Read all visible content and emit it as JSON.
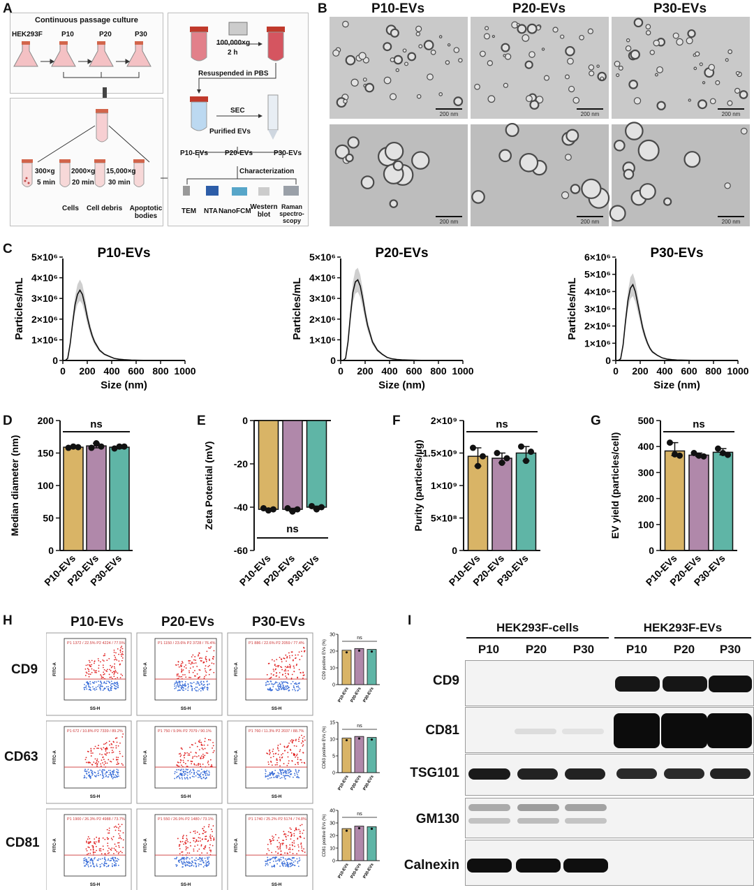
{
  "panel_labels": {
    "a": "A",
    "b": "B",
    "c": "C",
    "d": "D",
    "e": "E",
    "f": "F",
    "g": "G",
    "h": "H",
    "i": "I"
  },
  "panelA": {
    "title": "Continuous passage culture",
    "flask_labels": [
      "HEK293F",
      "P10",
      "P20",
      "P30"
    ],
    "centrifugation_steps": [
      {
        "speed": "300×g",
        "time": "5 min",
        "product": "Cells"
      },
      {
        "speed": "2000×g",
        "time": "20 min",
        "product": "Cell debris"
      },
      {
        "speed": "15,000×g",
        "time": "30 min",
        "product": "Apoptotic bodies"
      }
    ],
    "ultracentrifuge": {
      "speed": "100,000×g",
      "time": "2 h"
    },
    "resuspend": "Resuspended in PBS",
    "sec": "SEC",
    "purified": "Purified EVs",
    "ev_labels": [
      "P10-EVs",
      "P20-EVs",
      "P30-EVs"
    ],
    "characterization": "Characterization",
    "methods": [
      "TEM",
      "NTA",
      "NanoFCM",
      "Western blot",
      "Raman spectro- scopy"
    ]
  },
  "panelB": {
    "columns": [
      "P10-EVs",
      "P20-EVs",
      "P30-EVs"
    ],
    "scale_bar": "200 nm"
  },
  "panelC": {
    "xlabel": "Size (nm)",
    "ylabel": "Particles/mL"
  },
  "panelH": {
    "columns": [
      "P10-EVs",
      "P20-EVs",
      "P30-EVs"
    ],
    "rows": [
      "CD9",
      "CD63",
      "CD81"
    ],
    "x_axis": "SS-H",
    "y_axis": "FITC-A",
    "gates": [
      [
        "P1 1372 / 22.5%  P2 4224 / 77.5%",
        "P1 1150 / 23.6%  P2 3728 / 76.4%",
        "P1 886 / 22.6%  P2 2059 / 77.4%"
      ],
      [
        "P1 672 / 10.8%  P2 7339 / 89.2%",
        "P1 750 / 9.9%  P2 7079 / 90.1%",
        "P1 760 / 11.3%  P2 2037 / 88.7%"
      ],
      [
        "P1 1900 / 26.3%  P2 4988 / 73.7%",
        "P1 550 / 26.9%  P2 1480 / 73.1%",
        "P1 1740 / 25.2%  P2 5174 / 74.8%"
      ]
    ],
    "bar_ylabels": [
      "CD9 positive EVs (%)",
      "CD63 positive EVs (%)",
      "CD81 positive EVs (%)"
    ],
    "ns": "ns"
  },
  "panelI": {
    "group_cells": "HEK293F-cells",
    "group_evs": "HEK293F-EVs",
    "lanes": [
      "P10",
      "P20",
      "P30",
      "P10",
      "P20",
      "P30"
    ],
    "proteins": [
      "CD9",
      "CD81",
      "TSG101",
      "GM130",
      "Calnexin"
    ]
  },
  "chart_data": [
    {
      "type": "line",
      "panel": "C",
      "title": "P10-EVs",
      "xlabel": "Size (nm)",
      "ylabel": "Particles/mL",
      "xlim": [
        0,
        1000
      ],
      "ylim": [
        0,
        5000000
      ],
      "xticks": [
        "0",
        "200",
        "400",
        "600",
        "800",
        "1000"
      ],
      "yticks": [
        "0",
        "1×10⁶",
        "2×10⁶",
        "3×10⁶",
        "4×10⁶",
        "5×10⁶"
      ],
      "series": [
        {
          "x": [
            0,
            20,
            40,
            60,
            80,
            100,
            120,
            140,
            160,
            180,
            200,
            220,
            240,
            260,
            280,
            300,
            340,
            380,
            420,
            460,
            500,
            560,
            620,
            700,
            800,
            900,
            1000
          ],
          "y": [
            0,
            0,
            100000,
            800000,
            1800000,
            2700000,
            3200000,
            3400000,
            3200000,
            2700000,
            2100000,
            1600000,
            1200000,
            900000,
            700000,
            500000,
            300000,
            200000,
            100000,
            60000,
            40000,
            20000,
            10000,
            5000,
            0,
            0,
            0
          ]
        }
      ]
    },
    {
      "type": "line",
      "panel": "C",
      "title": "P20-EVs",
      "xlabel": "Size (nm)",
      "ylabel": "Particles/mL",
      "xlim": [
        0,
        1000
      ],
      "ylim": [
        0,
        5000000
      ],
      "xticks": [
        "0",
        "200",
        "400",
        "600",
        "800",
        "1000"
      ],
      "yticks": [
        "0",
        "1×10⁶",
        "2×10⁶",
        "3×10⁶",
        "4×10⁶",
        "5×10⁶"
      ],
      "series": [
        {
          "x": [
            0,
            20,
            40,
            60,
            80,
            100,
            120,
            140,
            160,
            180,
            200,
            220,
            240,
            260,
            280,
            300,
            340,
            380,
            420,
            460,
            500,
            560,
            620,
            700,
            800,
            900,
            1000
          ],
          "y": [
            0,
            0,
            100000,
            900000,
            2200000,
            3300000,
            3800000,
            3900000,
            3600000,
            3000000,
            2300000,
            1700000,
            1300000,
            900000,
            700000,
            500000,
            300000,
            150000,
            80000,
            50000,
            30000,
            20000,
            10000,
            5000,
            0,
            0,
            0
          ]
        }
      ]
    },
    {
      "type": "line",
      "panel": "C",
      "title": "P30-EVs",
      "xlabel": "Size (nm)",
      "ylabel": "Particles/mL",
      "xlim": [
        0,
        1000
      ],
      "ylim": [
        0,
        6000000
      ],
      "xticks": [
        "0",
        "200",
        "400",
        "600",
        "800",
        "1000"
      ],
      "yticks": [
        "0",
        "1×10⁶",
        "2×10⁶",
        "3×10⁶",
        "4×10⁶",
        "5×10⁶",
        "6×10⁶"
      ],
      "series": [
        {
          "x": [
            0,
            20,
            40,
            60,
            80,
            100,
            120,
            140,
            160,
            180,
            200,
            220,
            240,
            260,
            280,
            300,
            340,
            380,
            420,
            460,
            500,
            560,
            620,
            700,
            800,
            900,
            1000
          ],
          "y": [
            0,
            0,
            100000,
            900000,
            2300000,
            3500000,
            4200000,
            4400000,
            4000000,
            3300000,
            2600000,
            1900000,
            1400000,
            1000000,
            700000,
            500000,
            300000,
            150000,
            80000,
            50000,
            30000,
            20000,
            10000,
            5000,
            0,
            0,
            0
          ]
        }
      ]
    },
    {
      "type": "bar",
      "panel": "D",
      "ylabel": "Median diameter (nm)",
      "categories": [
        "P10-EVs",
        "P20-EVs",
        "P30-EVs"
      ],
      "values": [
        159,
        161,
        159
      ],
      "points": [
        [
          158,
          160,
          159
        ],
        [
          158,
          165,
          160
        ],
        [
          157,
          160,
          160
        ]
      ],
      "ylim": [
        0,
        200
      ],
      "yticks": [
        "0",
        "50",
        "100",
        "150",
        "200"
      ],
      "annotation": "ns",
      "colors": [
        "#d9b466",
        "#b088aa",
        "#5fb5a6"
      ]
    },
    {
      "type": "bar",
      "panel": "E",
      "ylabel": "Zeta Potential (mV)",
      "categories": [
        "P10-EVs",
        "P20-EVs",
        "P30-EVs"
      ],
      "values": [
        -41,
        -41,
        -40
      ],
      "points": [
        [
          -40.5,
          -41.5,
          -41
        ],
        [
          -40.5,
          -42,
          -41
        ],
        [
          -39.5,
          -41,
          -40
        ]
      ],
      "ylim": [
        -60,
        0
      ],
      "yticks": [
        "0",
        "-20",
        "-40",
        "-60"
      ],
      "annotation": "ns",
      "colors": [
        "#d9b466",
        "#b088aa",
        "#5fb5a6"
      ]
    },
    {
      "type": "bar",
      "panel": "F",
      "ylabel": "Purity (particles/µg)",
      "categories": [
        "P10-EVs",
        "P20-EVs",
        "P30-EVs"
      ],
      "values": [
        1.45,
        1.42,
        1.5
      ],
      "points": [
        [
          1.58,
          1.3,
          1.45
        ],
        [
          1.5,
          1.35,
          1.42
        ],
        [
          1.6,
          1.38,
          1.52
        ]
      ],
      "ylim": [
        0,
        2
      ],
      "yticks": [
        "0",
        "5×10⁸",
        "1×10⁹",
        "1.5×10⁹",
        "2×10⁹"
      ],
      "annotation": "ns",
      "colors": [
        "#d9b466",
        "#b088aa",
        "#5fb5a6"
      ]
    },
    {
      "type": "bar",
      "panel": "G",
      "ylabel": "EV yield (particles/cell)",
      "categories": [
        "P10-EVs",
        "P20-EVs",
        "P30-EVs"
      ],
      "values": [
        383,
        367,
        378
      ],
      "points": [
        [
          415,
          370,
          365
        ],
        [
          375,
          365,
          362
        ],
        [
          392,
          375,
          368
        ]
      ],
      "ylim": [
        0,
        500
      ],
      "yticks": [
        "0",
        "100",
        "200",
        "300",
        "400",
        "500"
      ],
      "annotation": "ns",
      "colors": [
        "#d9b466",
        "#b088aa",
        "#5fb5a6"
      ]
    },
    {
      "type": "bar",
      "panel": "H",
      "ylabel": "CD9 positive EVs (%)",
      "categories": [
        "P10-EVs",
        "P20-EVs",
        "P30-EVs"
      ],
      "values": [
        20.5,
        21.5,
        21
      ],
      "ylim": [
        0,
        30
      ],
      "yticks": [
        "0",
        "10",
        "20",
        "30"
      ],
      "annotation": "ns"
    },
    {
      "type": "bar",
      "panel": "H",
      "ylabel": "CD63 positive EVs (%)",
      "categories": [
        "P10-EVs",
        "P20-EVs",
        "P30-EVs"
      ],
      "values": [
        10.3,
        10.8,
        10.5
      ],
      "ylim": [
        0,
        15
      ],
      "yticks": [
        "0",
        "5",
        "10",
        "15"
      ],
      "annotation": "ns"
    },
    {
      "type": "bar",
      "panel": "H",
      "ylabel": "CD81 positive EVs (%)",
      "categories": [
        "P10-EVs",
        "P20-EVs",
        "P30-EVs"
      ],
      "values": [
        25.5,
        27.5,
        27
      ],
      "ylim": [
        0,
        40
      ],
      "yticks": [
        "0",
        "10",
        "20",
        "30",
        "40"
      ],
      "annotation": "ns"
    }
  ]
}
